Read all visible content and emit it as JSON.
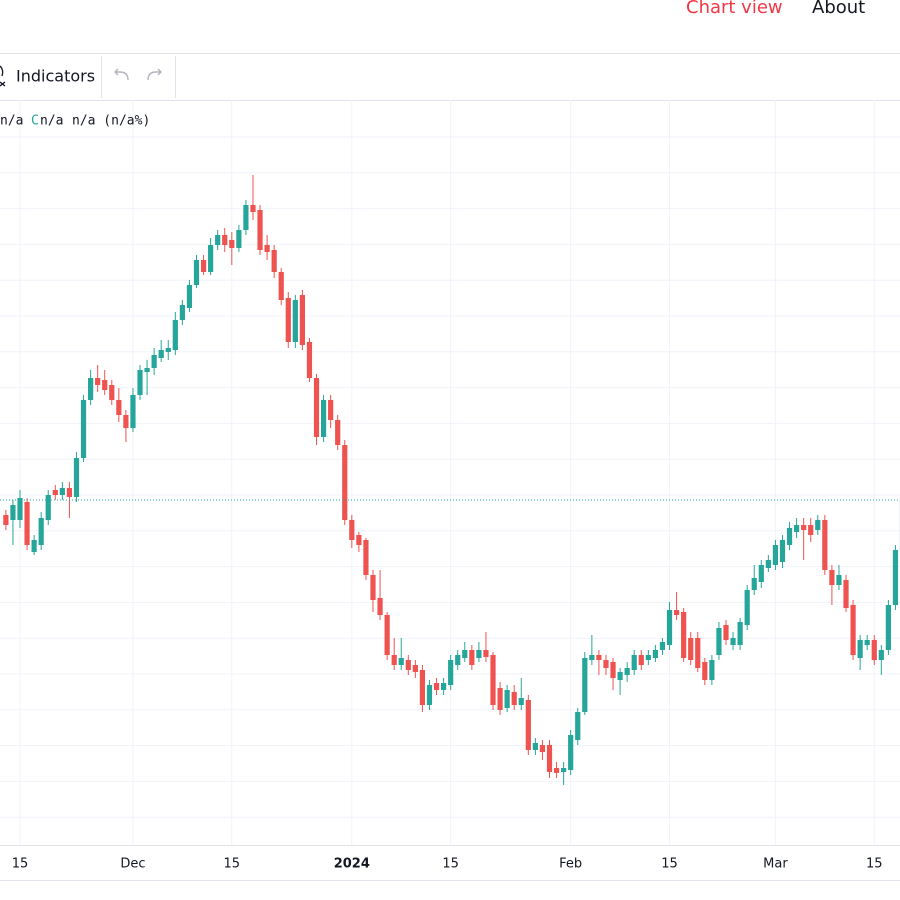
{
  "ui": {
    "nav": [
      "Chart view",
      "About"
    ],
    "toolbar": {
      "indicators": "Indicators"
    },
    "legend": [
      "n/a",
      "C",
      "n/a",
      "n/a (n/a%)"
    ]
  },
  "chart_data": {
    "type": "candlestick",
    "categories": [
      null,
      null,
      "15",
      null,
      null,
      null,
      null,
      null,
      null,
      null,
      null,
      null,
      null,
      null,
      null,
      null,
      null,
      null,
      "Dec",
      null,
      null,
      null,
      null,
      null,
      null,
      null,
      null,
      null,
      null,
      null,
      null,
      null,
      "15",
      null,
      null,
      null,
      null,
      null,
      null,
      null,
      null,
      null,
      null,
      null,
      null,
      null,
      null,
      null,
      null,
      "2024",
      null,
      null,
      null,
      null,
      null,
      null,
      null,
      null,
      null,
      null,
      null,
      null,
      null,
      "15",
      null,
      null,
      null,
      null,
      null,
      null,
      null,
      null,
      null,
      null,
      null,
      null,
      null,
      null,
      null,
      null,
      "Feb",
      null,
      null,
      null,
      null,
      null,
      null,
      null,
      null,
      null,
      null,
      null,
      null,
      null,
      "15",
      null,
      null,
      null,
      null,
      null,
      null,
      null,
      null,
      null,
      null,
      null,
      null,
      null,
      null,
      "Mar",
      null,
      null,
      null,
      null,
      null,
      null,
      null,
      null,
      null,
      null,
      null,
      null,
      null,
      "15",
      null,
      null,
      null,
      null
    ],
    "open": [
      385,
      380,
      380,
      398,
      348,
      355,
      380,
      410,
      405,
      412,
      403,
      442,
      500,
      522,
      520,
      515,
      500,
      485,
      472,
      505,
      528,
      532,
      542,
      548,
      550,
      580,
      592,
      615,
      640,
      628,
      655,
      665,
      660,
      652,
      670,
      695,
      690,
      655,
      650,
      628,
      602,
      558,
      605,
      558,
      522,
      463,
      500,
      480,
      455,
      380,
      365,
      360,
      325,
      302,
      285,
      245,
      235,
      240,
      235,
      230,
      195,
      217,
      210,
      215,
      235,
      242,
      250,
      242,
      250,
      245,
      212,
      192,
      208,
      195,
      200,
      150,
      155,
      155,
      132,
      128,
      130,
      160,
      188,
      240,
      245,
      240,
      238,
      220,
      225,
      230,
      245,
      240,
      242,
      250,
      255,
      290,
      288,
      262,
      262,
      238,
      220,
      245,
      275,
      255,
      255,
      275,
      310,
      318,
      332,
      335,
      338,
      355,
      368,
      375,
      375,
      370,
      380,
      330,
      315,
      320,
      295,
      242,
      255,
      260,
      240,
      250,
      295,
      350
    ],
    "high": [
      390,
      400,
      410,
      402,
      365,
      388,
      410,
      415,
      418,
      418,
      448,
      505,
      530,
      535,
      530,
      520,
      512,
      490,
      512,
      535,
      540,
      552,
      560,
      560,
      588,
      600,
      620,
      645,
      645,
      662,
      670,
      672,
      668,
      675,
      700,
      725,
      695,
      665,
      655,
      632,
      608,
      605,
      610,
      562,
      526,
      505,
      505,
      485,
      460,
      385,
      368,
      362,
      330,
      330,
      288,
      262,
      262,
      245,
      240,
      235,
      220,
      222,
      222,
      245,
      250,
      258,
      255,
      258,
      268,
      248,
      218,
      215,
      215,
      222,
      205,
      162,
      160,
      160,
      138,
      138,
      170,
      192,
      248,
      265,
      250,
      245,
      242,
      232,
      238,
      250,
      250,
      250,
      255,
      262,
      298,
      308,
      292,
      268,
      268,
      242,
      245,
      278,
      280,
      268,
      282,
      315,
      335,
      340,
      345,
      360,
      365,
      378,
      382,
      382,
      382,
      385,
      385,
      335,
      335,
      325,
      300,
      265,
      265,
      265,
      255,
      300,
      355,
      410
    ],
    "low": [
      370,
      355,
      372,
      350,
      345,
      350,
      375,
      400,
      400,
      382,
      398,
      438,
      495,
      508,
      505,
      495,
      478,
      458,
      468,
      500,
      505,
      525,
      538,
      540,
      545,
      575,
      588,
      612,
      625,
      625,
      650,
      648,
      635,
      648,
      665,
      680,
      645,
      640,
      622,
      595,
      552,
      552,
      550,
      518,
      455,
      458,
      472,
      450,
      375,
      352,
      348,
      320,
      288,
      280,
      240,
      230,
      230,
      225,
      222,
      188,
      190,
      205,
      205,
      210,
      230,
      238,
      230,
      238,
      238,
      190,
      185,
      188,
      190,
      190,
      145,
      145,
      140,
      122,
      122,
      115,
      125,
      155,
      185,
      235,
      225,
      225,
      210,
      205,
      218,
      225,
      230,
      235,
      238,
      245,
      250,
      280,
      238,
      235,
      228,
      215,
      215,
      240,
      255,
      250,
      250,
      270,
      305,
      312,
      328,
      330,
      332,
      350,
      362,
      340,
      358,
      365,
      325,
      295,
      310,
      288,
      240,
      230,
      250,
      235,
      225,
      245,
      290,
      345
    ],
    "close": [
      375,
      395,
      402,
      355,
      360,
      382,
      405,
      405,
      412,
      403,
      442,
      500,
      522,
      515,
      510,
      500,
      485,
      472,
      505,
      530,
      532,
      545,
      550,
      552,
      580,
      595,
      615,
      640,
      628,
      655,
      665,
      655,
      652,
      670,
      695,
      688,
      650,
      648,
      628,
      600,
      558,
      600,
      555,
      522,
      463,
      500,
      480,
      455,
      380,
      360,
      355,
      325,
      300,
      285,
      245,
      235,
      242,
      230,
      228,
      195,
      215,
      210,
      217,
      240,
      245,
      250,
      235,
      250,
      243,
      195,
      190,
      210,
      195,
      202,
      150,
      157,
      148,
      128,
      127,
      132,
      165,
      188,
      242,
      245,
      240,
      232,
      222,
      228,
      232,
      245,
      235,
      245,
      250,
      258,
      290,
      285,
      242,
      240,
      232,
      220,
      240,
      272,
      260,
      262,
      278,
      310,
      322,
      335,
      340,
      355,
      360,
      372,
      375,
      370,
      365,
      380,
      330,
      315,
      325,
      292,
      245,
      260,
      260,
      240,
      250,
      295,
      350,
      400
    ],
    "up_color": "#26a69a",
    "down_color": "#ef5350",
    "ylim": [
      55,
      800
    ],
    "grid": true,
    "price_line": true
  }
}
